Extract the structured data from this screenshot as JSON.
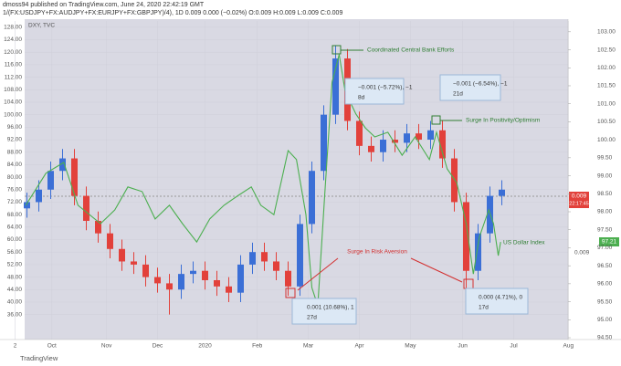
{
  "header": {
    "author": "dmoss94 published on TradingView.com, June 24, 2020 22:42:19 GMT",
    "symbol": "1/(FX:USDJPY+FX:AUDJPY+FX:EURJPY+FX:GBPJPY)/4), 1D  0.009  0.000 (−0.02%)  O:0.009  H:0.009  L:0.009  C:0.009",
    "overlay": "DXY, TVC"
  },
  "footer": "TradingView",
  "chart_data": {
    "type": "candlestick",
    "up_color": "#3b6fd6",
    "down_color": "#e2413b",
    "candles": {
      "x": [
        1.5,
        2.5,
        3.5,
        4.5,
        5.5,
        6.5,
        7.5,
        8.5,
        9.5,
        10.5,
        11.5,
        12.5,
        13.5,
        14.5,
        15.5,
        16.5,
        17.5,
        18.5,
        19.5,
        20.5,
        21.5,
        22.5,
        23.5,
        24.5,
        25.5,
        26.5,
        27.5,
        28.5,
        29.5,
        30.5,
        31.5,
        32.5,
        33.5,
        34.5,
        35.5,
        36.5,
        37.5,
        38.5,
        39.5,
        40.5,
        41.5
      ],
      "open": [
        70,
        72,
        76,
        82,
        86,
        74,
        66,
        62,
        57,
        53,
        52,
        48,
        46,
        44,
        49,
        50,
        47,
        45,
        43,
        52,
        56,
        53,
        50,
        45,
        65,
        82,
        100,
        118,
        98,
        90,
        88,
        92,
        91,
        94,
        92,
        95,
        86,
        72,
        50,
        62,
        74
      ],
      "high": [
        75,
        79,
        85,
        89,
        89,
        77,
        69,
        65,
        60,
        56,
        55,
        51,
        49,
        52,
        53,
        53,
        50,
        48,
        55,
        59,
        59,
        56,
        53,
        68,
        85,
        103,
        122,
        121,
        101,
        93,
        95,
        95,
        97,
        97,
        98,
        98,
        89,
        75,
        65,
        77,
        79
      ],
      "low": [
        67,
        69,
        73,
        79,
        71,
        63,
        59,
        54,
        50,
        49,
        45,
        43,
        36,
        41,
        46,
        44,
        42,
        40,
        40,
        49,
        50,
        47,
        42,
        42,
        62,
        79,
        97,
        95,
        87,
        85,
        85,
        88,
        88,
        89,
        89,
        83,
        69,
        44,
        47,
        59,
        71
      ],
      "close": [
        72,
        76,
        82,
        86,
        74,
        66,
        62,
        57,
        53,
        52,
        48,
        46,
        44,
        49,
        50,
        47,
        45,
        43,
        52,
        56,
        53,
        50,
        45,
        65,
        82,
        100,
        118,
        98,
        90,
        88,
        92,
        91,
        94,
        92,
        95,
        86,
        72,
        50,
        62,
        74,
        76
      ]
    },
    "line": {
      "name": "US Dollar Index",
      "color": "#4caf50",
      "axis": "y2",
      "x": [
        1.4,
        3.1,
        4.6,
        5.8,
        7.7,
        8.9,
        10,
        11.2,
        12.3,
        13.5,
        14.6,
        15.8,
        16.9,
        18.1,
        19.2,
        20.4,
        21.2,
        22.3,
        23.5,
        24.2,
        25,
        25.5,
        26,
        26.6,
        27.2,
        27.8,
        28.3,
        29.2,
        30,
        30.8,
        31.9,
        33.1,
        34.2,
        35.4,
        36,
        36.9,
        37.7,
        38.5,
        39.1,
        39.6,
        40.4,
        40.8,
        41.2,
        41.4
      ],
      "values": [
        98.18,
        99.07,
        99.37,
        98.18,
        97.67,
        98.05,
        98.69,
        98.56,
        97.8,
        98.18,
        97.67,
        97.16,
        97.8,
        98.18,
        98.43,
        98.69,
        98.18,
        97.92,
        99.7,
        99.45,
        97.92,
        95.89,
        95.39,
        98.56,
        101.6,
        102.37,
        101.35,
        100.72,
        100.33,
        100.08,
        100.21,
        99.57,
        100.08,
        99.45,
        100.21,
        99.19,
        98.81,
        97.67,
        96.27,
        97.29,
        98.05,
        97.67,
        96.78,
        97.16
      ]
    },
    "xlim": [
      0,
      48
    ],
    "xticks": [
      {
        "value": 0.5,
        "label": "2"
      },
      {
        "value": 3.6,
        "label": "Oct"
      },
      {
        "value": 8.2,
        "label": "Nov"
      },
      {
        "value": 12.5,
        "label": "Dec"
      },
      {
        "value": 16.5,
        "label": "2020"
      },
      {
        "value": 20.9,
        "label": "Feb"
      },
      {
        "value": 25.2,
        "label": "Mar"
      },
      {
        "value": 29.5,
        "label": "Apr"
      },
      {
        "value": 33.8,
        "label": "May"
      },
      {
        "value": 38.2,
        "label": "Jun"
      },
      {
        "value": 42.5,
        "label": "Jul"
      },
      {
        "value": 47.1,
        "label": "Aug"
      }
    ],
    "ylim": [
      28,
      130
    ],
    "yticks": [
      {
        "value": 128,
        "label": "128.00"
      },
      {
        "value": 124,
        "label": "124.00"
      },
      {
        "value": 120,
        "label": "120.00"
      },
      {
        "value": 116,
        "label": "116.00"
      },
      {
        "value": 112,
        "label": "112.00"
      },
      {
        "value": 108,
        "label": "108.00"
      },
      {
        "value": 104,
        "label": "104.00"
      },
      {
        "value": 100,
        "label": "100.00"
      },
      {
        "value": 96,
        "label": "96.00"
      },
      {
        "value": 92,
        "label": "92.00"
      },
      {
        "value": 88,
        "label": "88.00"
      },
      {
        "value": 84,
        "label": "84.00"
      },
      {
        "value": 80,
        "label": "80.00"
      },
      {
        "value": 76,
        "label": "76.00"
      },
      {
        "value": 72,
        "label": "72.00"
      },
      {
        "value": 68,
        "label": "68.00"
      },
      {
        "value": 64,
        "label": "64.00"
      },
      {
        "value": 60,
        "label": "60.00"
      },
      {
        "value": 56,
        "label": "56.00"
      },
      {
        "value": 52,
        "label": "52.00"
      },
      {
        "value": 48,
        "label": "48.00"
      },
      {
        "value": 44,
        "label": "44.00"
      },
      {
        "value": 40,
        "label": "40.00"
      },
      {
        "value": 36,
        "label": "36.00"
      }
    ],
    "y2lim": [
      94.45,
      103.3
    ],
    "y2ticks": [
      {
        "value": 103,
        "label": "103.00"
      },
      {
        "value": 102.5,
        "label": "102.50"
      },
      {
        "value": 102,
        "label": "102.00"
      },
      {
        "value": 101.5,
        "label": "101.50"
      },
      {
        "value": 101,
        "label": "101.00"
      },
      {
        "value": 100.5,
        "label": "100.50"
      },
      {
        "value": 100,
        "label": "100.00"
      },
      {
        "value": 99.5,
        "label": "99.50"
      },
      {
        "value": 99,
        "label": "99.00"
      },
      {
        "value": 98.5,
        "label": "98.50"
      },
      {
        "value": 98,
        "label": "98.00"
      },
      {
        "value": 97.5,
        "label": "97.50"
      },
      {
        "value": 97,
        "label": "97.00"
      },
      {
        "value": 96.5,
        "label": "96.50"
      },
      {
        "value": 96,
        "label": "96.00"
      },
      {
        "value": 95.5,
        "label": "95.50"
      },
      {
        "value": 95,
        "label": "95.00"
      },
      {
        "value": 94.5,
        "label": "94.50"
      }
    ],
    "annotations": {
      "central_bank": "Coordinated Central Bank Efforts",
      "positivity": "Surge In Positivity/Optimism",
      "risk_aversion": "Surge In Risk Aversion",
      "measure1": [
        "−0.001 (−5.72%), −1",
        "8d"
      ],
      "measure2": [
        "−0.001 (−6.54%), −1",
        "21d"
      ],
      "measure3": [
        "0.001 (10.68%), 1",
        "27d"
      ],
      "measure4": [
        "0.000 (4.71%), 0",
        "17d"
      ]
    },
    "price_labels": {
      "last": "0.009",
      "countdown": "22:17:45",
      "dxy": "97.21",
      "dxy_scale": "0.009"
    }
  }
}
